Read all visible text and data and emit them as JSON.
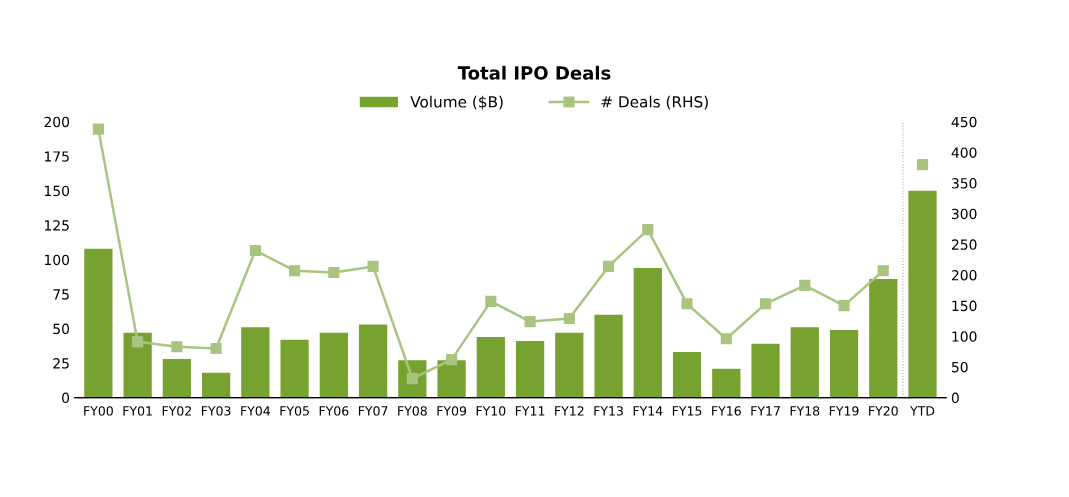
{
  "chart_data": {
    "type": "bar",
    "title": "Total IPO Deals",
    "categories": [
      "FY00",
      "FY01",
      "FY02",
      "FY03",
      "FY04",
      "FY05",
      "FY06",
      "FY07",
      "FY08",
      "FY09",
      "FY10",
      "FY11",
      "FY12",
      "FY13",
      "FY14",
      "FY15",
      "FY16",
      "FY17",
      "FY18",
      "FY19",
      "FY20",
      "YTD"
    ],
    "series": [
      {
        "name": "Volume ($B)",
        "color": "#78a22f",
        "values": [
          108,
          47,
          28,
          18,
          51,
          42,
          47,
          53,
          27,
          27,
          44,
          41,
          47,
          60,
          94,
          33,
          21,
          39,
          51,
          49,
          86,
          150
        ]
      },
      {
        "name": "# Deals (RHS)",
        "type": "line",
        "axis": "y2",
        "color": "#a9c47f",
        "marker": "square",
        "values": [
          438,
          91,
          83,
          80,
          240,
          207,
          204,
          214,
          31,
          62,
          157,
          124,
          129,
          214,
          274,
          153,
          96,
          153,
          183,
          150,
          207,
          null
        ]
      },
      {
        "type": "scatter",
        "axis": "y2",
        "color": "#a9c47f",
        "marker": "square",
        "values": [
          null,
          null,
          null,
          null,
          null,
          null,
          null,
          null,
          null,
          null,
          null,
          null,
          null,
          null,
          null,
          null,
          null,
          null,
          null,
          null,
          null,
          380
        ]
      }
    ],
    "ylim": [
      0,
      200
    ],
    "yticks": [
      0,
      25,
      50,
      75,
      100,
      125,
      150,
      175,
      200
    ],
    "y2lim": [
      0,
      450
    ],
    "y2ticks": [
      0,
      50,
      100,
      150,
      200,
      250,
      300,
      350,
      400,
      450
    ],
    "grid": false,
    "legend": "top"
  }
}
